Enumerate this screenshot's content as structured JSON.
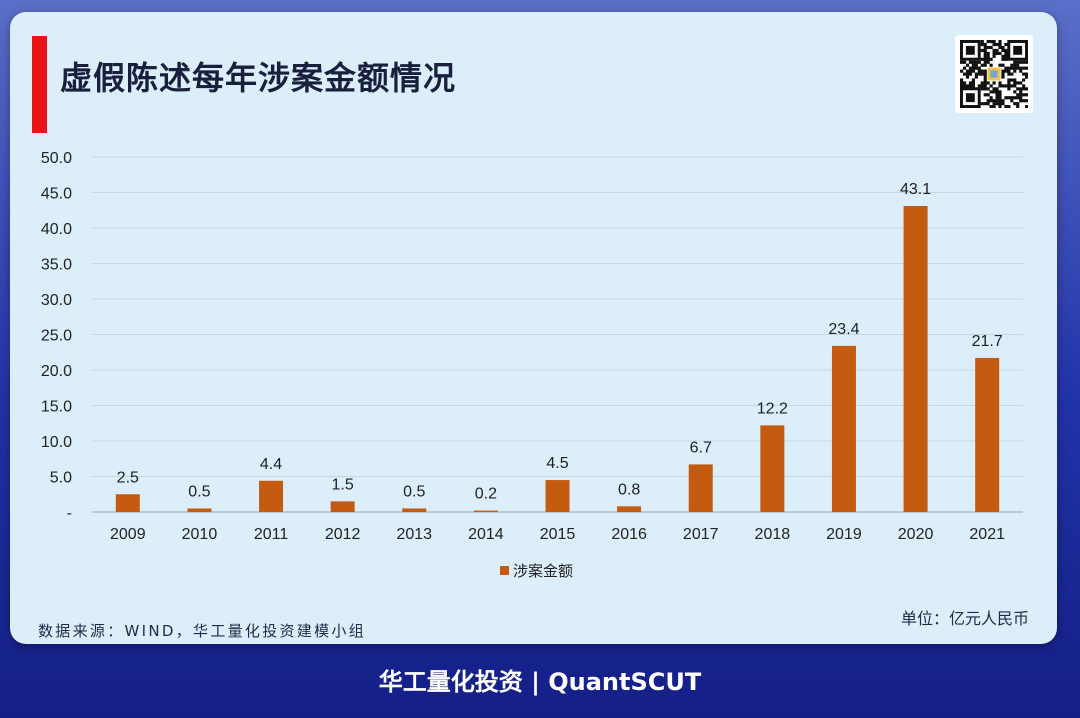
{
  "header": {
    "title": "虚假陈述每年涉案金额情况"
  },
  "chart_data": {
    "type": "bar",
    "title": "虚假陈述每年涉案金额情况",
    "categories": [
      "2009",
      "2010",
      "2011",
      "2012",
      "2013",
      "2014",
      "2015",
      "2016",
      "2017",
      "2018",
      "2019",
      "2020",
      "2021"
    ],
    "series": [
      {
        "name": "涉案金额",
        "values": [
          2.5,
          0.5,
          4.4,
          1.5,
          0.5,
          0.2,
          4.5,
          0.8,
          6.7,
          12.2,
          23.4,
          43.1,
          21.7
        ]
      }
    ],
    "data_labels": [
      "2.5",
      "0.5",
      "4.4",
      "1.5",
      "0.5",
      "0.2",
      "4.5",
      "0.8",
      "6.7",
      "12.2",
      "23.4",
      "43.1",
      "21.7"
    ],
    "y_ticks": [
      "-",
      "5.0",
      "10.0",
      "15.0",
      "20.0",
      "25.0",
      "30.0",
      "35.0",
      "40.0",
      "45.0",
      "50.0"
    ],
    "ylim": [
      0,
      50
    ],
    "grid": true,
    "legend": "bottom-center",
    "bar_color": "#c55a11"
  },
  "footnote": {
    "source": "数据来源：WIND，华工量化投资建模小组",
    "unit": "单位：亿元人民币"
  },
  "footer": {
    "brand": "华工量化投资 | QuantSCUT"
  },
  "icons": {
    "qr": "qr-code-icon"
  }
}
